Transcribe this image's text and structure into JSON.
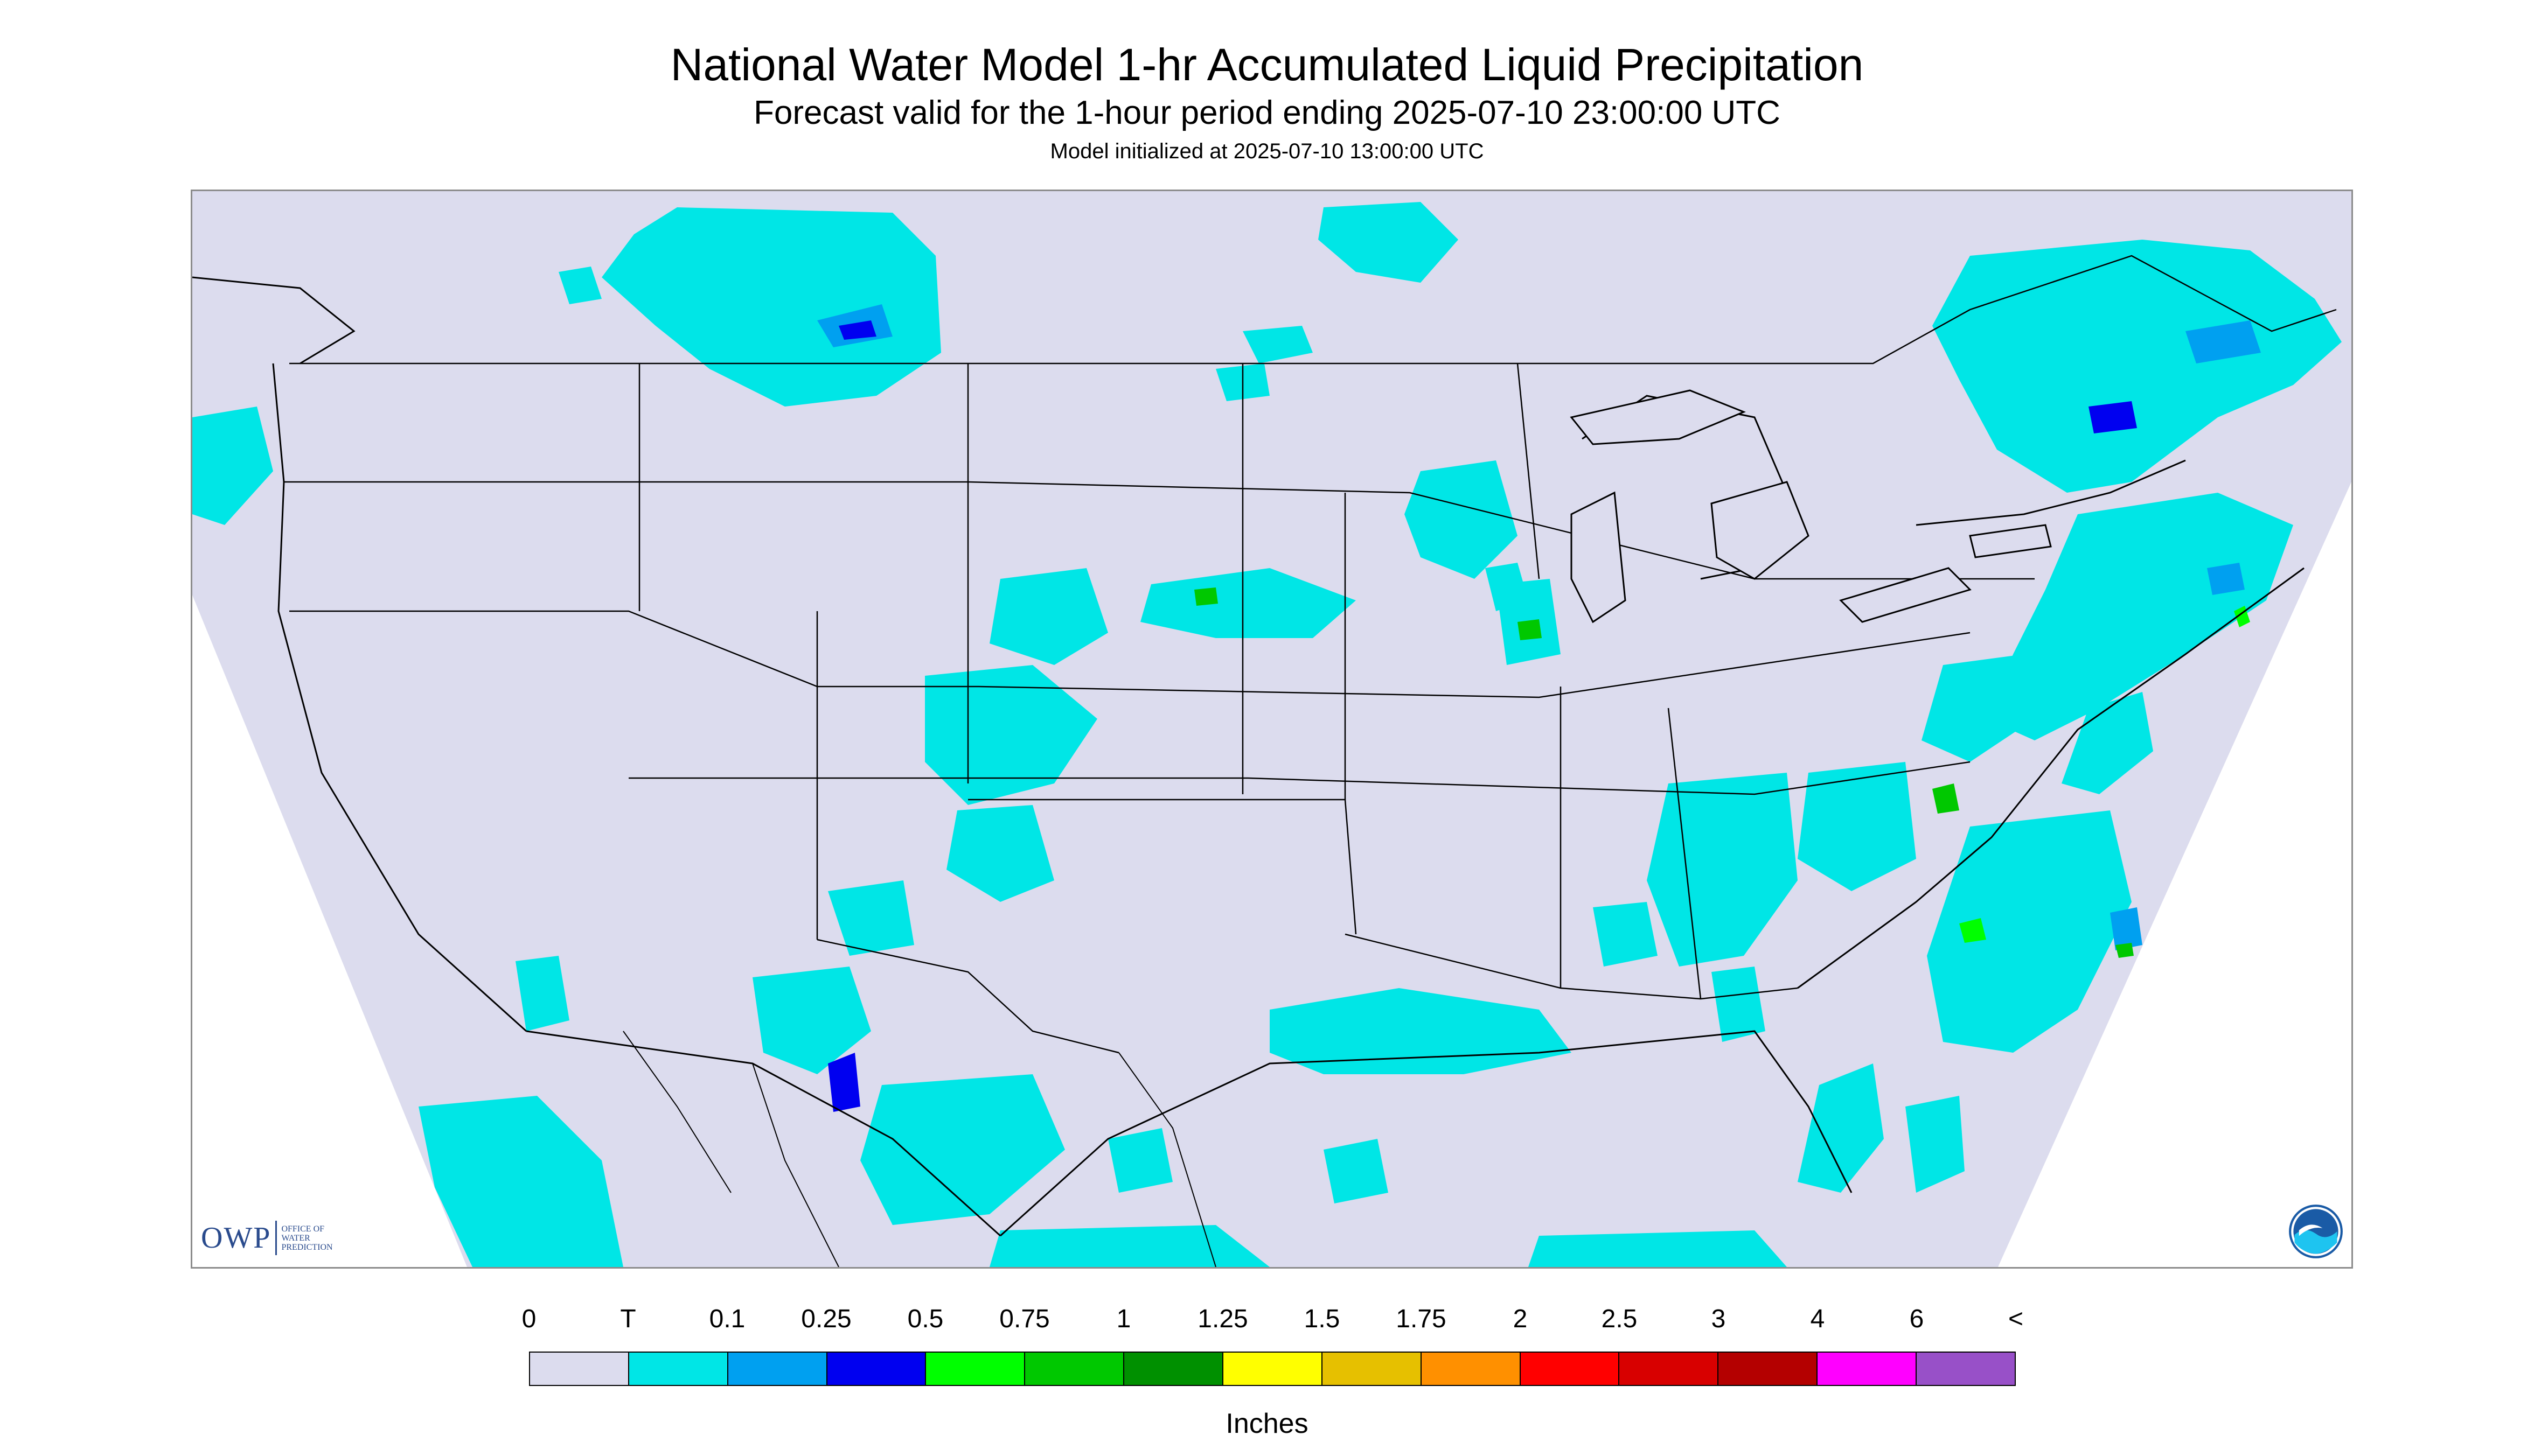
{
  "header": {
    "title": "National Water Model 1-hr Accumulated Liquid Precipitation",
    "subtitle": "Forecast valid for the 1-hour period ending 2025-07-10 23:00:00 UTC",
    "initialized": "Model initialized at 2025-07-10 13:00:00 UTC"
  },
  "map": {
    "region": "CONUS",
    "background_color": "#dcdcee",
    "outline_color": "#000000",
    "logos": {
      "owp": {
        "mark": "OWP",
        "lines": [
          "Office of",
          "Water",
          "Prediction"
        ]
      },
      "noaa": {
        "icon": "noaa-logo-icon"
      }
    }
  },
  "legend": {
    "tick_labels": [
      "0",
      "T",
      "0.1",
      "0.25",
      "0.5",
      "0.75",
      "1",
      "1.25",
      "1.5",
      "1.75",
      "2",
      "2.5",
      "3",
      "4",
      "6",
      "<"
    ],
    "colors": [
      "#dcdcee",
      "#00e6e6",
      "#00a0f0",
      "#0000f0",
      "#00ff00",
      "#00c800",
      "#009000",
      "#ffff00",
      "#e6c000",
      "#ff9000",
      "#ff0000",
      "#d80000",
      "#b40000",
      "#ff00ff",
      "#9850c8"
    ],
    "unit": "Inches"
  }
}
